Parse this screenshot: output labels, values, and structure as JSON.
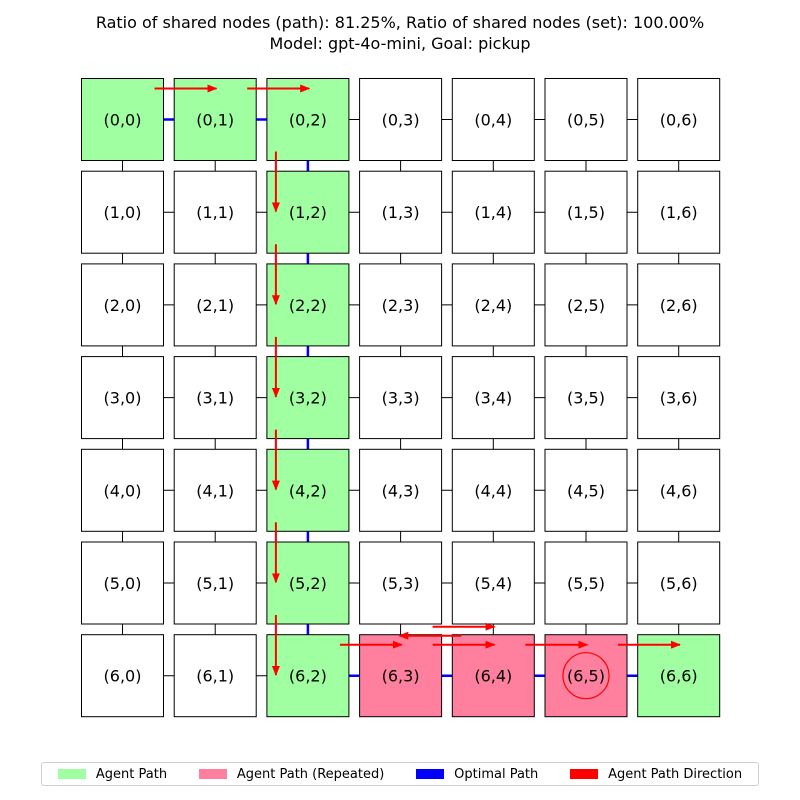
{
  "title": {
    "line1": "Ratio of shared nodes (path): 81.25%, Ratio of shared nodes (set): 100.00%",
    "line2": "Model: gpt-4o-mini, Goal: pickup"
  },
  "colors": {
    "agent_path": "#a0ffa0",
    "agent_path_repeated": "#ff7f9f",
    "optimal_path": "#0000ff",
    "direction": "#ff0000",
    "cell_default": "#ffffff"
  },
  "grid": {
    "rows": 7,
    "cols": 7,
    "agent_path_cells": [
      [
        0,
        0
      ],
      [
        0,
        1
      ],
      [
        0,
        2
      ],
      [
        1,
        2
      ],
      [
        2,
        2
      ],
      [
        3,
        2
      ],
      [
        4,
        2
      ],
      [
        5,
        2
      ],
      [
        6,
        2
      ],
      [
        6,
        6
      ]
    ],
    "repeated_cells": [
      [
        6,
        3
      ],
      [
        6,
        4
      ],
      [
        6,
        5
      ]
    ],
    "optimal_path": [
      [
        0,
        0
      ],
      [
        0,
        1
      ],
      [
        0,
        2
      ],
      [
        1,
        2
      ],
      [
        2,
        2
      ],
      [
        3,
        2
      ],
      [
        4,
        2
      ],
      [
        5,
        2
      ],
      [
        6,
        2
      ],
      [
        6,
        3
      ],
      [
        6,
        4
      ],
      [
        6,
        5
      ],
      [
        6,
        6
      ]
    ],
    "agent_moves": [
      [
        [
          0,
          0
        ],
        [
          0,
          1
        ]
      ],
      [
        [
          0,
          1
        ],
        [
          0,
          2
        ]
      ],
      [
        [
          0,
          2
        ],
        [
          1,
          2
        ]
      ],
      [
        [
          1,
          2
        ],
        [
          2,
          2
        ]
      ],
      [
        [
          2,
          2
        ],
        [
          3,
          2
        ]
      ],
      [
        [
          3,
          2
        ],
        [
          4,
          2
        ]
      ],
      [
        [
          4,
          2
        ],
        [
          5,
          2
        ]
      ],
      [
        [
          5,
          2
        ],
        [
          6,
          2
        ]
      ],
      [
        [
          6,
          2
        ],
        [
          6,
          3
        ]
      ],
      [
        [
          6,
          3
        ],
        [
          6,
          4
        ]
      ],
      [
        [
          6,
          4
        ],
        [
          6,
          3
        ]
      ],
      [
        [
          6,
          3
        ],
        [
          6,
          4
        ]
      ],
      [
        [
          6,
          4
        ],
        [
          6,
          5
        ]
      ],
      [
        [
          6,
          5
        ],
        [
          6,
          6
        ]
      ]
    ],
    "goal_marker_cell": [
      6,
      5
    ]
  },
  "legend": [
    {
      "label": "Agent Path",
      "color": "#a0ffa0"
    },
    {
      "label": "Agent Path (Repeated)",
      "color": "#ff7f9f"
    },
    {
      "label": "Optimal Path",
      "color": "#0000ff"
    },
    {
      "label": "Agent Path Direction",
      "color": "#ff0000"
    }
  ]
}
